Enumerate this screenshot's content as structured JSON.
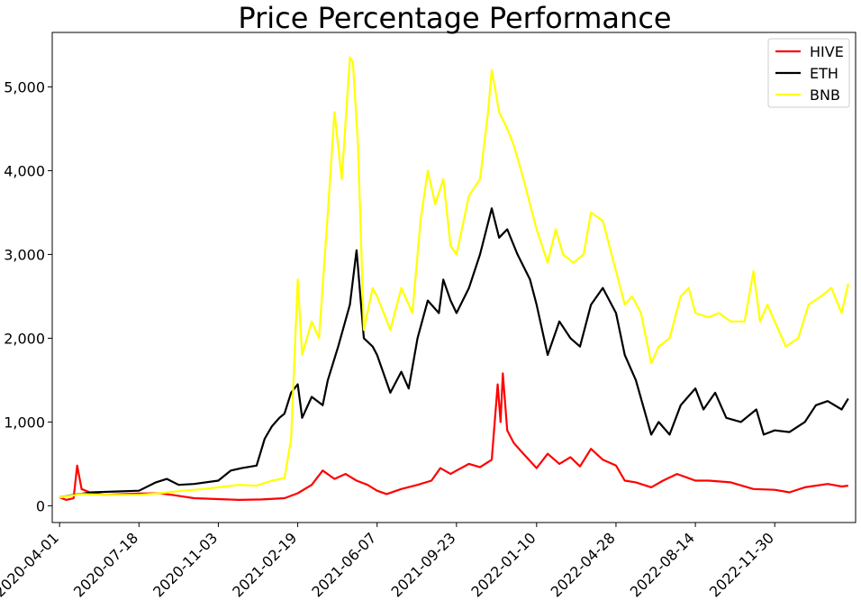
{
  "chart_data": {
    "type": "line",
    "title": "Price Percentage Performance",
    "xlabel": "",
    "ylabel": "",
    "x_tick_labels": [
      "2020-04-01",
      "2020-07-18",
      "2020-11-03",
      "2021-02-19",
      "2021-06-07",
      "2021-09-23",
      "2022-01-10",
      "2022-04-28",
      "2022-08-14",
      "2022-11-30"
    ],
    "y_ticks": [
      0,
      1000,
      2000,
      3000,
      4000,
      5000
    ],
    "y_tick_labels": [
      "0",
      "1,000",
      "2,000",
      "3,000",
      "4,000",
      "5,000"
    ],
    "xlim": [
      "2020-03-22",
      "2023-03-20"
    ],
    "ylim": [
      -200,
      5650
    ],
    "grid": false,
    "legend_position": "top-right",
    "series": [
      {
        "name": "HIVE",
        "color": "#ff0000",
        "points": [
          [
            "2020-04-01",
            100
          ],
          [
            "2020-04-10",
            70
          ],
          [
            "2020-04-20",
            90
          ],
          [
            "2020-04-25",
            480
          ],
          [
            "2020-05-01",
            200
          ],
          [
            "2020-05-15",
            150
          ],
          [
            "2020-06-01",
            130
          ],
          [
            "2020-07-01",
            140
          ],
          [
            "2020-07-18",
            145
          ],
          [
            "2020-08-15",
            150
          ],
          [
            "2020-09-01",
            130
          ],
          [
            "2020-10-01",
            90
          ],
          [
            "2020-11-03",
            80
          ],
          [
            "2020-12-01",
            70
          ],
          [
            "2021-01-01",
            75
          ],
          [
            "2021-02-01",
            90
          ],
          [
            "2021-02-19",
            150
          ],
          [
            "2021-03-10",
            250
          ],
          [
            "2021-03-25",
            420
          ],
          [
            "2021-04-10",
            320
          ],
          [
            "2021-04-25",
            380
          ],
          [
            "2021-05-10",
            300
          ],
          [
            "2021-05-25",
            250
          ],
          [
            "2021-06-07",
            180
          ],
          [
            "2021-06-20",
            140
          ],
          [
            "2021-07-10",
            200
          ],
          [
            "2021-08-01",
            250
          ],
          [
            "2021-08-20",
            300
          ],
          [
            "2021-09-01",
            450
          ],
          [
            "2021-09-15",
            380
          ],
          [
            "2021-09-23",
            420
          ],
          [
            "2021-10-10",
            500
          ],
          [
            "2021-10-25",
            460
          ],
          [
            "2021-11-10",
            550
          ],
          [
            "2021-11-18",
            1450
          ],
          [
            "2021-11-22",
            1000
          ],
          [
            "2021-11-25",
            1580
          ],
          [
            "2021-12-01",
            900
          ],
          [
            "2021-12-10",
            750
          ],
          [
            "2021-12-20",
            650
          ],
          [
            "2022-01-10",
            450
          ],
          [
            "2022-01-25",
            620
          ],
          [
            "2022-02-10",
            500
          ],
          [
            "2022-02-25",
            580
          ],
          [
            "2022-03-10",
            470
          ],
          [
            "2022-03-25",
            680
          ],
          [
            "2022-04-10",
            550
          ],
          [
            "2022-04-28",
            480
          ],
          [
            "2022-05-10",
            300
          ],
          [
            "2022-05-25",
            280
          ],
          [
            "2022-06-15",
            220
          ],
          [
            "2022-07-01",
            300
          ],
          [
            "2022-07-20",
            380
          ],
          [
            "2022-08-14",
            300
          ],
          [
            "2022-09-01",
            300
          ],
          [
            "2022-10-01",
            280
          ],
          [
            "2022-11-01",
            200
          ],
          [
            "2022-11-30",
            190
          ],
          [
            "2022-12-20",
            160
          ],
          [
            "2023-01-10",
            220
          ],
          [
            "2023-02-10",
            260
          ],
          [
            "2023-03-01",
            230
          ],
          [
            "2023-03-10",
            240
          ]
        ]
      },
      {
        "name": "ETH",
        "color": "#000000",
        "points": [
          [
            "2020-04-01",
            100
          ],
          [
            "2020-04-20",
            130
          ],
          [
            "2020-05-15",
            160
          ],
          [
            "2020-06-15",
            170
          ],
          [
            "2020-07-18",
            180
          ],
          [
            "2020-08-10",
            280
          ],
          [
            "2020-08-25",
            320
          ],
          [
            "2020-09-10",
            250
          ],
          [
            "2020-10-01",
            260
          ],
          [
            "2020-11-03",
            300
          ],
          [
            "2020-11-20",
            420
          ],
          [
            "2020-12-05",
            450
          ],
          [
            "2020-12-25",
            480
          ],
          [
            "2021-01-05",
            800
          ],
          [
            "2021-01-15",
            950
          ],
          [
            "2021-01-25",
            1050
          ],
          [
            "2021-02-01",
            1100
          ],
          [
            "2021-02-10",
            1350
          ],
          [
            "2021-02-19",
            1450
          ],
          [
            "2021-02-25",
            1050
          ],
          [
            "2021-03-10",
            1300
          ],
          [
            "2021-03-25,",
            1200
          ],
          [
            "2021-04-01",
            1500
          ],
          [
            "2021-04-15",
            1900
          ],
          [
            "2021-05-01",
            2400
          ],
          [
            "2021-05-10",
            3050
          ],
          [
            "2021-05-20",
            2000
          ],
          [
            "2021-06-01",
            1900
          ],
          [
            "2021-06-07",
            1800
          ],
          [
            "2021-06-25",
            1350
          ],
          [
            "2021-07-10",
            1600
          ],
          [
            "2021-07-20",
            1400
          ],
          [
            "2021-08-01",
            2000
          ],
          [
            "2021-08-15",
            2450
          ],
          [
            "2021-08-30",
            2300
          ],
          [
            "2021-09-05",
            2700
          ],
          [
            "2021-09-15",
            2450
          ],
          [
            "2021-09-23",
            2300
          ],
          [
            "2021-10-10",
            2600
          ],
          [
            "2021-10-25",
            3000
          ],
          [
            "2021-11-10",
            3550
          ],
          [
            "2021-11-20",
            3200
          ],
          [
            "2021-12-01",
            3300
          ],
          [
            "2021-12-15",
            3000
          ],
          [
            "2022-01-01",
            2700
          ],
          [
            "2022-01-10",
            2400
          ],
          [
            "2022-01-25",
            1800
          ],
          [
            "2022-02-10",
            2200
          ],
          [
            "2022-02-25",
            2000
          ],
          [
            "2022-03-10",
            1900
          ],
          [
            "2022-03-25",
            2400
          ],
          [
            "2022-04-10",
            2600
          ],
          [
            "2022-04-28",
            2300
          ],
          [
            "2022-05-10",
            1800
          ],
          [
            "2022-05-25",
            1500
          ],
          [
            "2022-06-15",
            850
          ],
          [
            "2022-06-25",
            1000
          ],
          [
            "2022-07-10",
            850
          ],
          [
            "2022-07-25",
            1200
          ],
          [
            "2022-08-14",
            1400
          ],
          [
            "2022-08-25",
            1150
          ],
          [
            "2022-09-10",
            1350
          ],
          [
            "2022-09-25",
            1050
          ],
          [
            "2022-10-15",
            1000
          ],
          [
            "2022-11-05",
            1150
          ],
          [
            "2022-11-15",
            850
          ],
          [
            "2022-11-30",
            900
          ],
          [
            "2022-12-20",
            880
          ],
          [
            "2023-01-10",
            1000
          ],
          [
            "2023-01-25",
            1200
          ],
          [
            "2023-02-10",
            1250
          ],
          [
            "2023-03-01",
            1150
          ],
          [
            "2023-03-10",
            1280
          ]
        ]
      },
      {
        "name": "BNB",
        "color": "#ffff00",
        "points": [
          [
            "2020-04-01",
            100
          ],
          [
            "2020-05-01",
            140
          ],
          [
            "2020-06-01",
            130
          ],
          [
            "2020-07-18",
            130
          ],
          [
            "2020-08-15",
            150
          ],
          [
            "2020-09-15",
            180
          ],
          [
            "2020-10-15",
            200
          ],
          [
            "2020-11-03",
            220
          ],
          [
            "2020-12-01",
            250
          ],
          [
            "2020-12-25",
            240
          ],
          [
            "2021-01-15",
            300
          ],
          [
            "2021-02-01",
            330
          ],
          [
            "2021-02-10",
            800
          ],
          [
            "2021-02-19",
            2700
          ],
          [
            "2021-02-25",
            1800
          ],
          [
            "2021-03-10",
            2200
          ],
          [
            "2021-03-20",
            2000
          ],
          [
            "2021-04-01",
            3500
          ],
          [
            "2021-04-10",
            4700
          ],
          [
            "2021-04-20",
            3900
          ],
          [
            "2021-05-01",
            5350
          ],
          [
            "2021-05-05",
            5300
          ],
          [
            "2021-05-12",
            4300
          ],
          [
            "2021-05-20",
            2100
          ],
          [
            "2021-06-01",
            2600
          ],
          [
            "2021-06-07",
            2500
          ],
          [
            "2021-06-25",
            2100
          ],
          [
            "2021-07-10",
            2600
          ],
          [
            "2021-07-25",
            2300
          ],
          [
            "2021-08-05",
            3400
          ],
          [
            "2021-08-15",
            4000
          ],
          [
            "2021-08-25",
            3600
          ],
          [
            "2021-09-05",
            3900
          ],
          [
            "2021-09-15",
            3100
          ],
          [
            "2021-09-23",
            3000
          ],
          [
            "2021-10-10",
            3700
          ],
          [
            "2021-10-25",
            3900
          ],
          [
            "2021-11-05",
            4700
          ],
          [
            "2021-11-10",
            5200
          ],
          [
            "2021-11-20",
            4700
          ],
          [
            "2021-12-01",
            4500
          ],
          [
            "2021-12-10",
            4300
          ],
          [
            "2021-12-20",
            4000
          ],
          [
            "2022-01-01",
            3600
          ],
          [
            "2022-01-10",
            3300
          ],
          [
            "2022-01-25",
            2900
          ],
          [
            "2022-02-05",
            3300
          ],
          [
            "2022-02-15",
            3000
          ],
          [
            "2022-03-01",
            2900
          ],
          [
            "2022-03-15",
            3000
          ],
          [
            "2022-03-25",
            3500
          ],
          [
            "2022-04-10",
            3400
          ],
          [
            "2022-04-28",
            2800
          ],
          [
            "2022-05-10",
            2400
          ],
          [
            "2022-05-20",
            2500
          ],
          [
            "2022-06-01",
            2300
          ],
          [
            "2022-06-15",
            1700
          ],
          [
            "2022-06-25",
            1900
          ],
          [
            "2022-07-10",
            2000
          ],
          [
            "2022-07-25",
            2500
          ],
          [
            "2022-08-05",
            2600
          ],
          [
            "2022-08-14",
            2300
          ],
          [
            "2022-09-01",
            2250
          ],
          [
            "2022-09-15",
            2300
          ],
          [
            "2022-10-01",
            2200
          ],
          [
            "2022-10-20",
            2200
          ],
          [
            "2022-11-01",
            2800
          ],
          [
            "2022-11-10",
            2200
          ],
          [
            "2022-11-20",
            2400
          ],
          [
            "2022-11-30",
            2200
          ],
          [
            "2022-12-15",
            1900
          ],
          [
            "2023-01-01",
            2000
          ],
          [
            "2023-01-15",
            2400
          ],
          [
            "2023-02-01",
            2500
          ],
          [
            "2023-02-15",
            2600
          ],
          [
            "2023-03-01",
            2300
          ],
          [
            "2023-03-10",
            2650
          ]
        ]
      }
    ]
  }
}
